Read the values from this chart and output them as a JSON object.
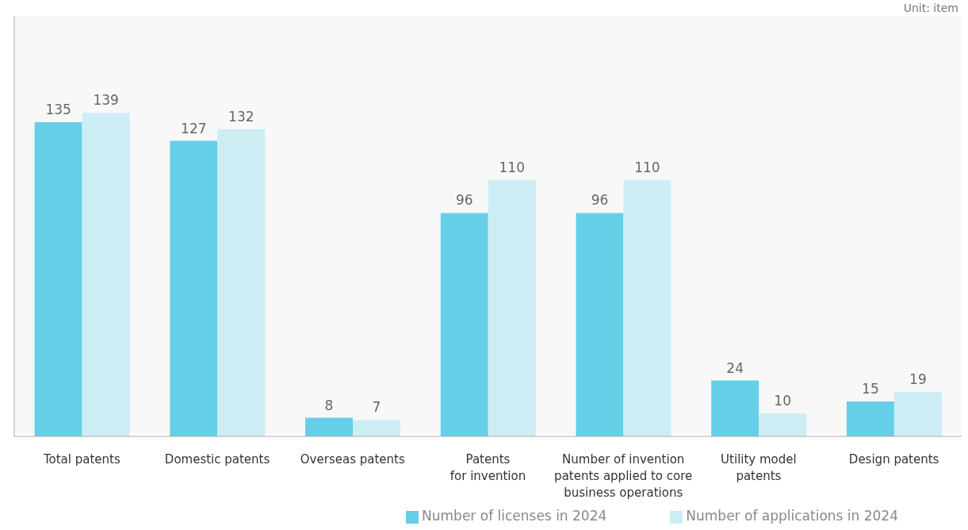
{
  "chart_data": {
    "type": "bar",
    "annotations": [
      "Unit: item"
    ],
    "categories": [
      "Total patents",
      "Domestic patents",
      "Overseas patents",
      "Patents\nfor invention",
      "Number of invention\npatents applied to core\nbusiness operations",
      "Utility model\npatents",
      "Design patents"
    ],
    "series": [
      {
        "name": "Number of licenses in 2024",
        "color": "#66cfe8",
        "values": [
          135,
          127,
          8,
          96,
          96,
          24,
          15
        ]
      },
      {
        "name": "Number of applications in 2024",
        "color": "#cdedf5",
        "values": [
          139,
          132,
          7,
          110,
          110,
          10,
          19
        ]
      }
    ],
    "data_labels": true,
    "legend": "bottom right"
  }
}
